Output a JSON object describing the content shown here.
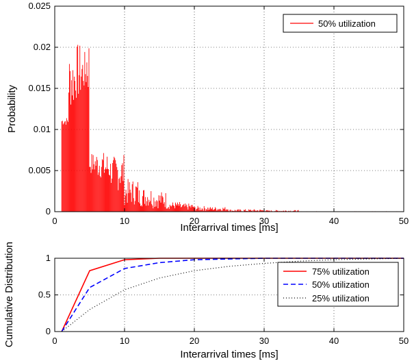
{
  "chart_data": [
    {
      "type": "bar",
      "xlabel": "Interarrival times [ms]",
      "ylabel": "Probability",
      "xlim": [
        0,
        50
      ],
      "ylim": [
        0,
        0.025
      ],
      "xticks": [
        "0",
        "10",
        "20",
        "30",
        "40",
        "50"
      ],
      "yticks": [
        "0",
        "0.005",
        "0.01",
        "0.015",
        "0.02",
        "0.025"
      ],
      "grid": true,
      "legend_position": "top-right",
      "series": [
        {
          "name": "50% utilization",
          "color": "#ff0000",
          "segments": [
            {
              "x0": 1.0,
              "x1": 2.0,
              "low": 0.0105,
              "high": 0.0115
            },
            {
              "x0": 2.0,
              "x1": 3.0,
              "low": 0.0125,
              "high": 0.0195
            },
            {
              "x0": 3.0,
              "x1": 4.0,
              "low": 0.0135,
              "high": 0.0205
            },
            {
              "x0": 4.0,
              "x1": 4.5,
              "low": 0.0145,
              "high": 0.0195
            },
            {
              "x0": 4.5,
              "x1": 5.0,
              "low": 0.014,
              "high": 0.0216
            },
            {
              "x0": 5.0,
              "x1": 6.0,
              "low": 0.0045,
              "high": 0.0072
            },
            {
              "x0": 6.0,
              "x1": 7.0,
              "low": 0.004,
              "high": 0.0075
            },
            {
              "x0": 7.0,
              "x1": 8.0,
              "low": 0.0035,
              "high": 0.0073
            },
            {
              "x0": 8.0,
              "x1": 9.0,
              "low": 0.003,
              "high": 0.0068
            },
            {
              "x0": 9.0,
              "x1": 10.0,
              "low": 0.0025,
              "high": 0.0071
            },
            {
              "x0": 10.0,
              "x1": 12.0,
              "low": 0.0008,
              "high": 0.004
            },
            {
              "x0": 12.0,
              "x1": 14.0,
              "low": 0.0006,
              "high": 0.003
            },
            {
              "x0": 14.0,
              "x1": 16.0,
              "low": 0.0004,
              "high": 0.0025
            },
            {
              "x0": 16.0,
              "x1": 18.0,
              "low": 0.0003,
              "high": 0.0012
            },
            {
              "x0": 18.0,
              "x1": 20.0,
              "low": 0.0002,
              "high": 0.001
            },
            {
              "x0": 20.0,
              "x1": 22.0,
              "low": 0.0001,
              "high": 0.0007
            },
            {
              "x0": 22.0,
              "x1": 25.0,
              "low": 0.0001,
              "high": 0.0006
            },
            {
              "x0": 25.0,
              "x1": 30.0,
              "low": 0.0,
              "high": 0.0003
            },
            {
              "x0": 30.0,
              "x1": 35.0,
              "low": 0.0,
              "high": 0.0002
            },
            {
              "x0": 35.0,
              "x1": 50.0,
              "low": 0.0,
              "high": 5e-05
            }
          ]
        }
      ]
    },
    {
      "type": "line",
      "xlabel": "Interarrival times [ms]",
      "ylabel": "Cumulative Distribution",
      "xlim": [
        0,
        50
      ],
      "ylim": [
        0,
        1
      ],
      "xticks": [
        "0",
        "10",
        "20",
        "30",
        "40",
        "50"
      ],
      "yticks": [
        "0",
        "0.5",
        "1"
      ],
      "grid": true,
      "legend_position": "right",
      "series": [
        {
          "name": "75% utilization",
          "color": "#ff0000",
          "style": "solid",
          "x": [
            1,
            5,
            10,
            15,
            20,
            30,
            40,
            50
          ],
          "y": [
            0,
            0.83,
            0.98,
            1.0,
            1.0,
            1.0,
            1.0,
            1.0
          ]
        },
        {
          "name": "50% utilization",
          "color": "#0000ff",
          "style": "dashed",
          "x": [
            1,
            5,
            10,
            15,
            20,
            25,
            30,
            40,
            50
          ],
          "y": [
            0,
            0.6,
            0.86,
            0.94,
            0.98,
            0.99,
            1.0,
            1.0,
            1.0
          ]
        },
        {
          "name": "25% utilization",
          "color": "#000000",
          "style": "dotted",
          "x": [
            1,
            5,
            10,
            15,
            20,
            25,
            30,
            35,
            40,
            45,
            50
          ],
          "y": [
            0,
            0.3,
            0.57,
            0.73,
            0.83,
            0.89,
            0.93,
            0.96,
            0.98,
            0.99,
            1.0
          ]
        }
      ]
    }
  ]
}
